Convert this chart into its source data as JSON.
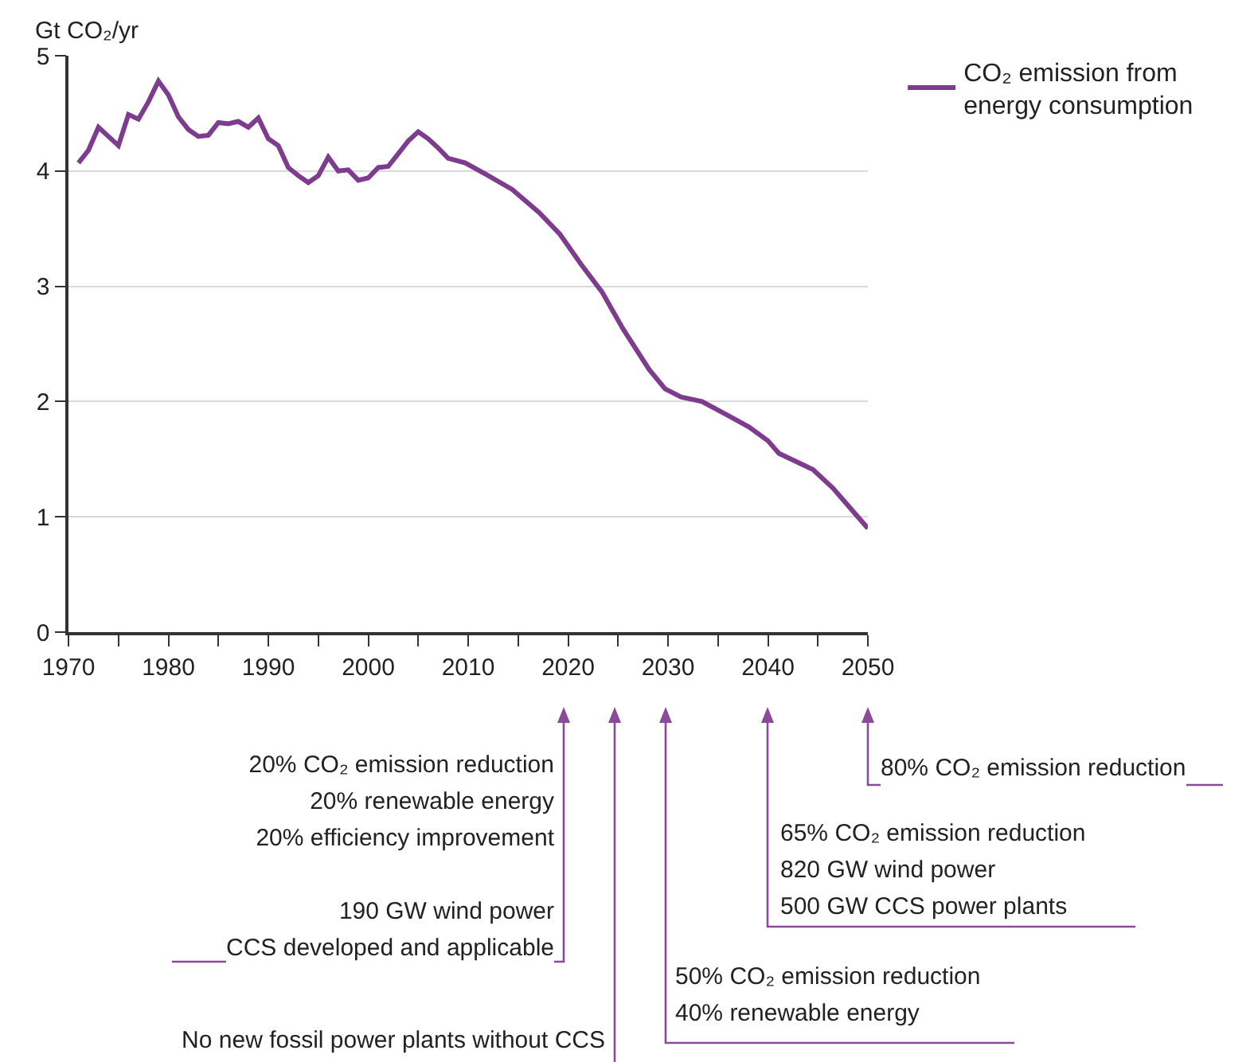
{
  "chart_data": {
    "type": "line",
    "ylabel": "Gt CO₂/yr",
    "series": [
      {
        "name": "CO₂ emission from energy consumption",
        "color": "#7d3c8d",
        "x": [
          1971,
          1972,
          1973,
          1974,
          1975,
          1976,
          1977,
          1978,
          1979,
          1980,
          1981,
          1982,
          1983,
          1984,
          1985,
          1986,
          1987,
          1988,
          1989,
          1990,
          1991,
          1992,
          1993,
          1994,
          1995,
          1996,
          1997,
          1998,
          1999,
          2000,
          2001,
          2002,
          2003,
          2004,
          2005,
          2006,
          2007,
          2008,
          2009.7,
          2011.8,
          2014.4,
          2017.1,
          2019.2,
          2021.3,
          2023.4,
          2025.5,
          2028.1,
          2029.7,
          2031.3,
          2033.4,
          2036,
          2038.1,
          2040,
          2041.1,
          2044.5,
          2046.5,
          2050
        ],
        "values": [
          4.07,
          4.18,
          4.38,
          4.3,
          4.22,
          4.49,
          4.45,
          4.6,
          4.78,
          4.66,
          4.47,
          4.36,
          4.3,
          4.31,
          4.42,
          4.41,
          4.43,
          4.38,
          4.46,
          4.28,
          4.22,
          4.03,
          3.96,
          3.9,
          3.96,
          4.12,
          4.0,
          4.01,
          3.92,
          3.94,
          4.03,
          4.04,
          4.15,
          4.26,
          4.34,
          4.28,
          4.2,
          4.11,
          4.07,
          3.97,
          3.84,
          3.64,
          3.45,
          3.19,
          2.95,
          2.63,
          2.28,
          2.11,
          2.04,
          2.0,
          1.88,
          1.78,
          1.66,
          1.55,
          1.41,
          1.25,
          0.9
        ]
      }
    ],
    "xlim": [
      1970,
      2050
    ],
    "xticks": [
      1970,
      {
        "value": 1975,
        "label": null
      },
      1980,
      {
        "value": 1985,
        "label": null
      },
      1990,
      {
        "value": 1995,
        "label": null
      },
      2000,
      {
        "value": 2005,
        "label": null
      },
      2010,
      {
        "value": 2015,
        "label": null
      },
      2020,
      {
        "value": 2025,
        "label": null
      },
      2030,
      {
        "value": 2035,
        "label": null
      },
      2040,
      {
        "value": 2045,
        "label": null
      },
      2050
    ],
    "ylim": [
      0,
      5
    ],
    "yticks": [
      0,
      1,
      2,
      3,
      4,
      5
    ],
    "grid": "y",
    "legend": "top right",
    "marker": "none",
    "line_style": "solid",
    "annotations": [
      "20% CO₂ emission reduction\n20% renewable energy\n20% efficiency improvement\n\n190 GW wind power\nCCS developed and applicable",
      "No new fossil power plants without CCS",
      "50% CO₂ emission reduction\n40% renewable energy",
      "65% CO₂ emission reduction\n820 GW wind power\n500 GW CCS power plants",
      "80% CO₂ emission reduction"
    ]
  }
}
